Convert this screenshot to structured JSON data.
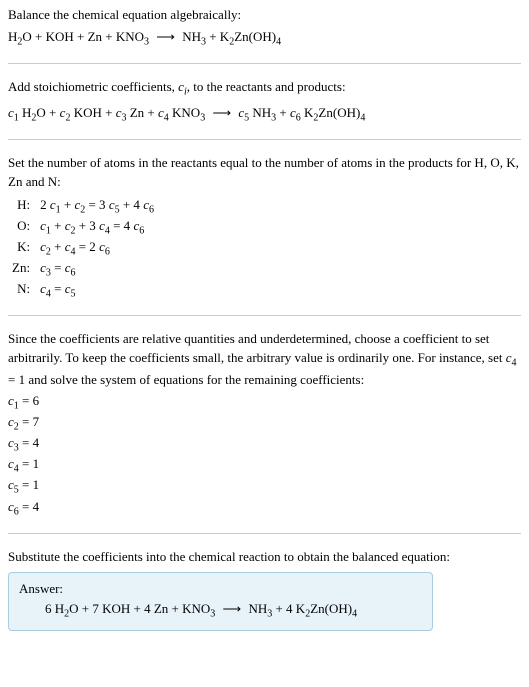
{
  "intro": {
    "line1": "Balance the chemical equation algebraically:",
    "equation_parts": {
      "lhs1": "H",
      "lhs1_sub": "2",
      "lhs1b": "O + KOH + Zn + KNO",
      "lhs1b_sub": "3",
      "arrow": "⟶",
      "rhs1": "NH",
      "rhs1_sub": "3",
      "rhs2": " + K",
      "rhs2_sub": "2",
      "rhs3": "Zn(OH)",
      "rhs3_sub": "4"
    }
  },
  "stoich": {
    "line1a": "Add stoichiometric coefficients, ",
    "line1_ci": "c",
    "line1_ci_sub": "i",
    "line1b": ", to the reactants and products:",
    "eq": {
      "c1": "c",
      "c1s": "1",
      "t1": " H",
      "t1s": "2",
      "t1b": "O + ",
      "c2": "c",
      "c2s": "2",
      "t2": " KOH + ",
      "c3": "c",
      "c3s": "3",
      "t3": " Zn + ",
      "c4": "c",
      "c4s": "4",
      "t4": " KNO",
      "t4s": "3",
      "arrow": "⟶",
      "c5": "c",
      "c5s": "5",
      "t5": " NH",
      "t5s": "3",
      "t5b": " + ",
      "c6": "c",
      "c6s": "6",
      "t6": " K",
      "t6s": "2",
      "t6b": "Zn(OH)",
      "t6bs": "4"
    }
  },
  "atoms": {
    "line1": "Set the number of atoms in the reactants equal to the number of atoms in the products for H, O, K, Zn and N:",
    "rows": [
      {
        "label": "H:",
        "c1a": "2 ",
        "c1": "c",
        "c1s": "1",
        "m1": " + ",
        "c2": "c",
        "c2s": "2",
        "m2": " = 3 ",
        "c3": "c",
        "c3s": "5",
        "m3": " + 4 ",
        "c4": "c",
        "c4s": "6"
      },
      {
        "label": "O:",
        "c1a": "",
        "c1": "c",
        "c1s": "1",
        "m1": " + ",
        "c2": "c",
        "c2s": "2",
        "m2": " + 3 ",
        "c3": "c",
        "c3s": "4",
        "m3": " = 4 ",
        "c4": "c",
        "c4s": "6"
      },
      {
        "label": "K:",
        "c1a": "",
        "c1": "c",
        "c1s": "2",
        "m1": " + ",
        "c2": "c",
        "c2s": "4",
        "m2": " = 2 ",
        "c3": "c",
        "c3s": "6",
        "m3": "",
        "c4": "",
        "c4s": ""
      },
      {
        "label": "Zn:",
        "c1a": "",
        "c1": "c",
        "c1s": "3",
        "m1": " = ",
        "c2": "c",
        "c2s": "6",
        "m2": "",
        "c3": "",
        "c3s": "",
        "m3": "",
        "c4": "",
        "c4s": ""
      },
      {
        "label": "N:",
        "c1a": "",
        "c1": "c",
        "c1s": "4",
        "m1": " = ",
        "c2": "c",
        "c2s": "5",
        "m2": "",
        "c3": "",
        "c3s": "",
        "m3": "",
        "c4": "",
        "c4s": ""
      }
    ]
  },
  "arbitrary": {
    "text_a": "Since the coefficients are relative quantities and underdetermined, choose a coefficient to set arbitrarily. To keep the coefficients small, the arbitrary value is ordinarily one. For instance, set ",
    "cvar": "c",
    "cvar_sub": "4",
    "text_b": " = 1 and solve the system of equations for the remaining coefficients:",
    "coeffs": [
      {
        "v": "c",
        "s": "1",
        "eq": " = 6"
      },
      {
        "v": "c",
        "s": "2",
        "eq": " = 7"
      },
      {
        "v": "c",
        "s": "3",
        "eq": " = 4"
      },
      {
        "v": "c",
        "s": "4",
        "eq": " = 1"
      },
      {
        "v": "c",
        "s": "5",
        "eq": " = 1"
      },
      {
        "v": "c",
        "s": "6",
        "eq": " = 4"
      }
    ]
  },
  "substitute": {
    "line1": "Substitute the coefficients into the chemical reaction to obtain the balanced equation:"
  },
  "answer": {
    "label": "Answer:",
    "eq": {
      "p1": "6 H",
      "p1s": "2",
      "p1b": "O + 7 KOH + 4 Zn + KNO",
      "p1bs": "3",
      "arrow": "⟶",
      "p2": "NH",
      "p2s": "3",
      "p2b": " + 4 K",
      "p2bs": "2",
      "p2c": "Zn(OH)",
      "p2cs": "4"
    }
  },
  "colors": {
    "divider": "#cccccc",
    "answer_bg": "#e8f3f9",
    "answer_border": "#a8cce0",
    "text": "#000000"
  }
}
